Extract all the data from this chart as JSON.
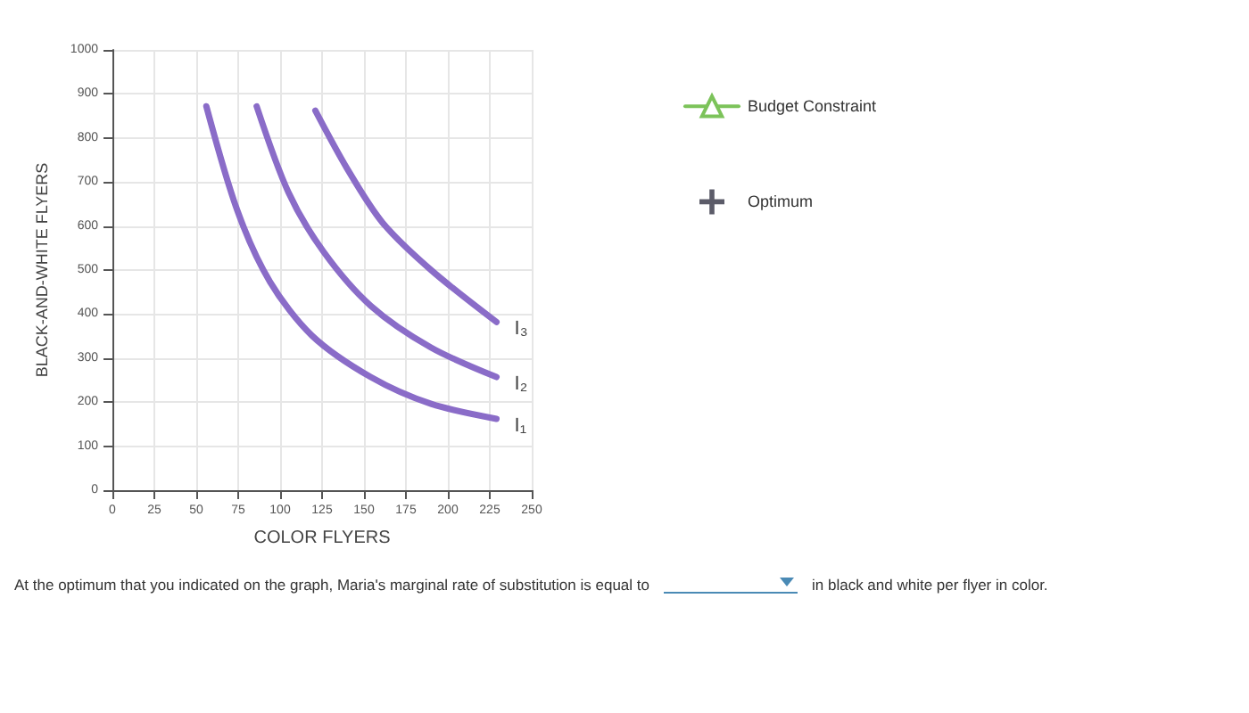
{
  "chart_data": {
    "type": "line",
    "xlabel": "COLOR FLYERS",
    "ylabel": "BLACK-AND-WHITE FLYERS",
    "xlim": [
      0,
      250
    ],
    "xticks": [
      0,
      25,
      50,
      75,
      100,
      125,
      150,
      175,
      200,
      225,
      250
    ],
    "ylim": [
      0,
      1000
    ],
    "yticks": [
      0,
      100,
      200,
      300,
      400,
      500,
      600,
      700,
      800,
      900,
      1000
    ],
    "grid": true,
    "legend": "right",
    "marker": "none",
    "series": [
      {
        "name": "I₁",
        "color": "#8a6cc8",
        "x": [
          56,
          74.5,
          94,
          119,
          154,
          190,
          229
        ],
        "values": [
          872,
          635,
          473,
          351,
          257,
          196,
          162
        ]
      },
      {
        "name": "I₂",
        "color": "#8a6cc8",
        "x": [
          86,
          105,
          126,
          154,
          190,
          229
        ],
        "values": [
          872,
          676,
          541,
          419,
          324,
          257
        ]
      },
      {
        "name": "I₃",
        "color": "#8a6cc8",
        "x": [
          121,
          140,
          161,
          190,
          229
        ],
        "values": [
          862,
          730,
          608,
          500,
          382
        ]
      },
      {
        "name": "Budget Constraint",
        "color": "#7cc35a",
        "type": "line",
        "marker": "triangle",
        "line_style": "solid"
      },
      {
        "name": "Optimum",
        "color": "#333344",
        "type": "scatter",
        "marker": "cross"
      }
    ],
    "annotations": [
      "At the optimum that you indicated on the graph, Maria's marginal rate of substitution is equal to",
      "in black and white per flyer in color."
    ]
  }
}
